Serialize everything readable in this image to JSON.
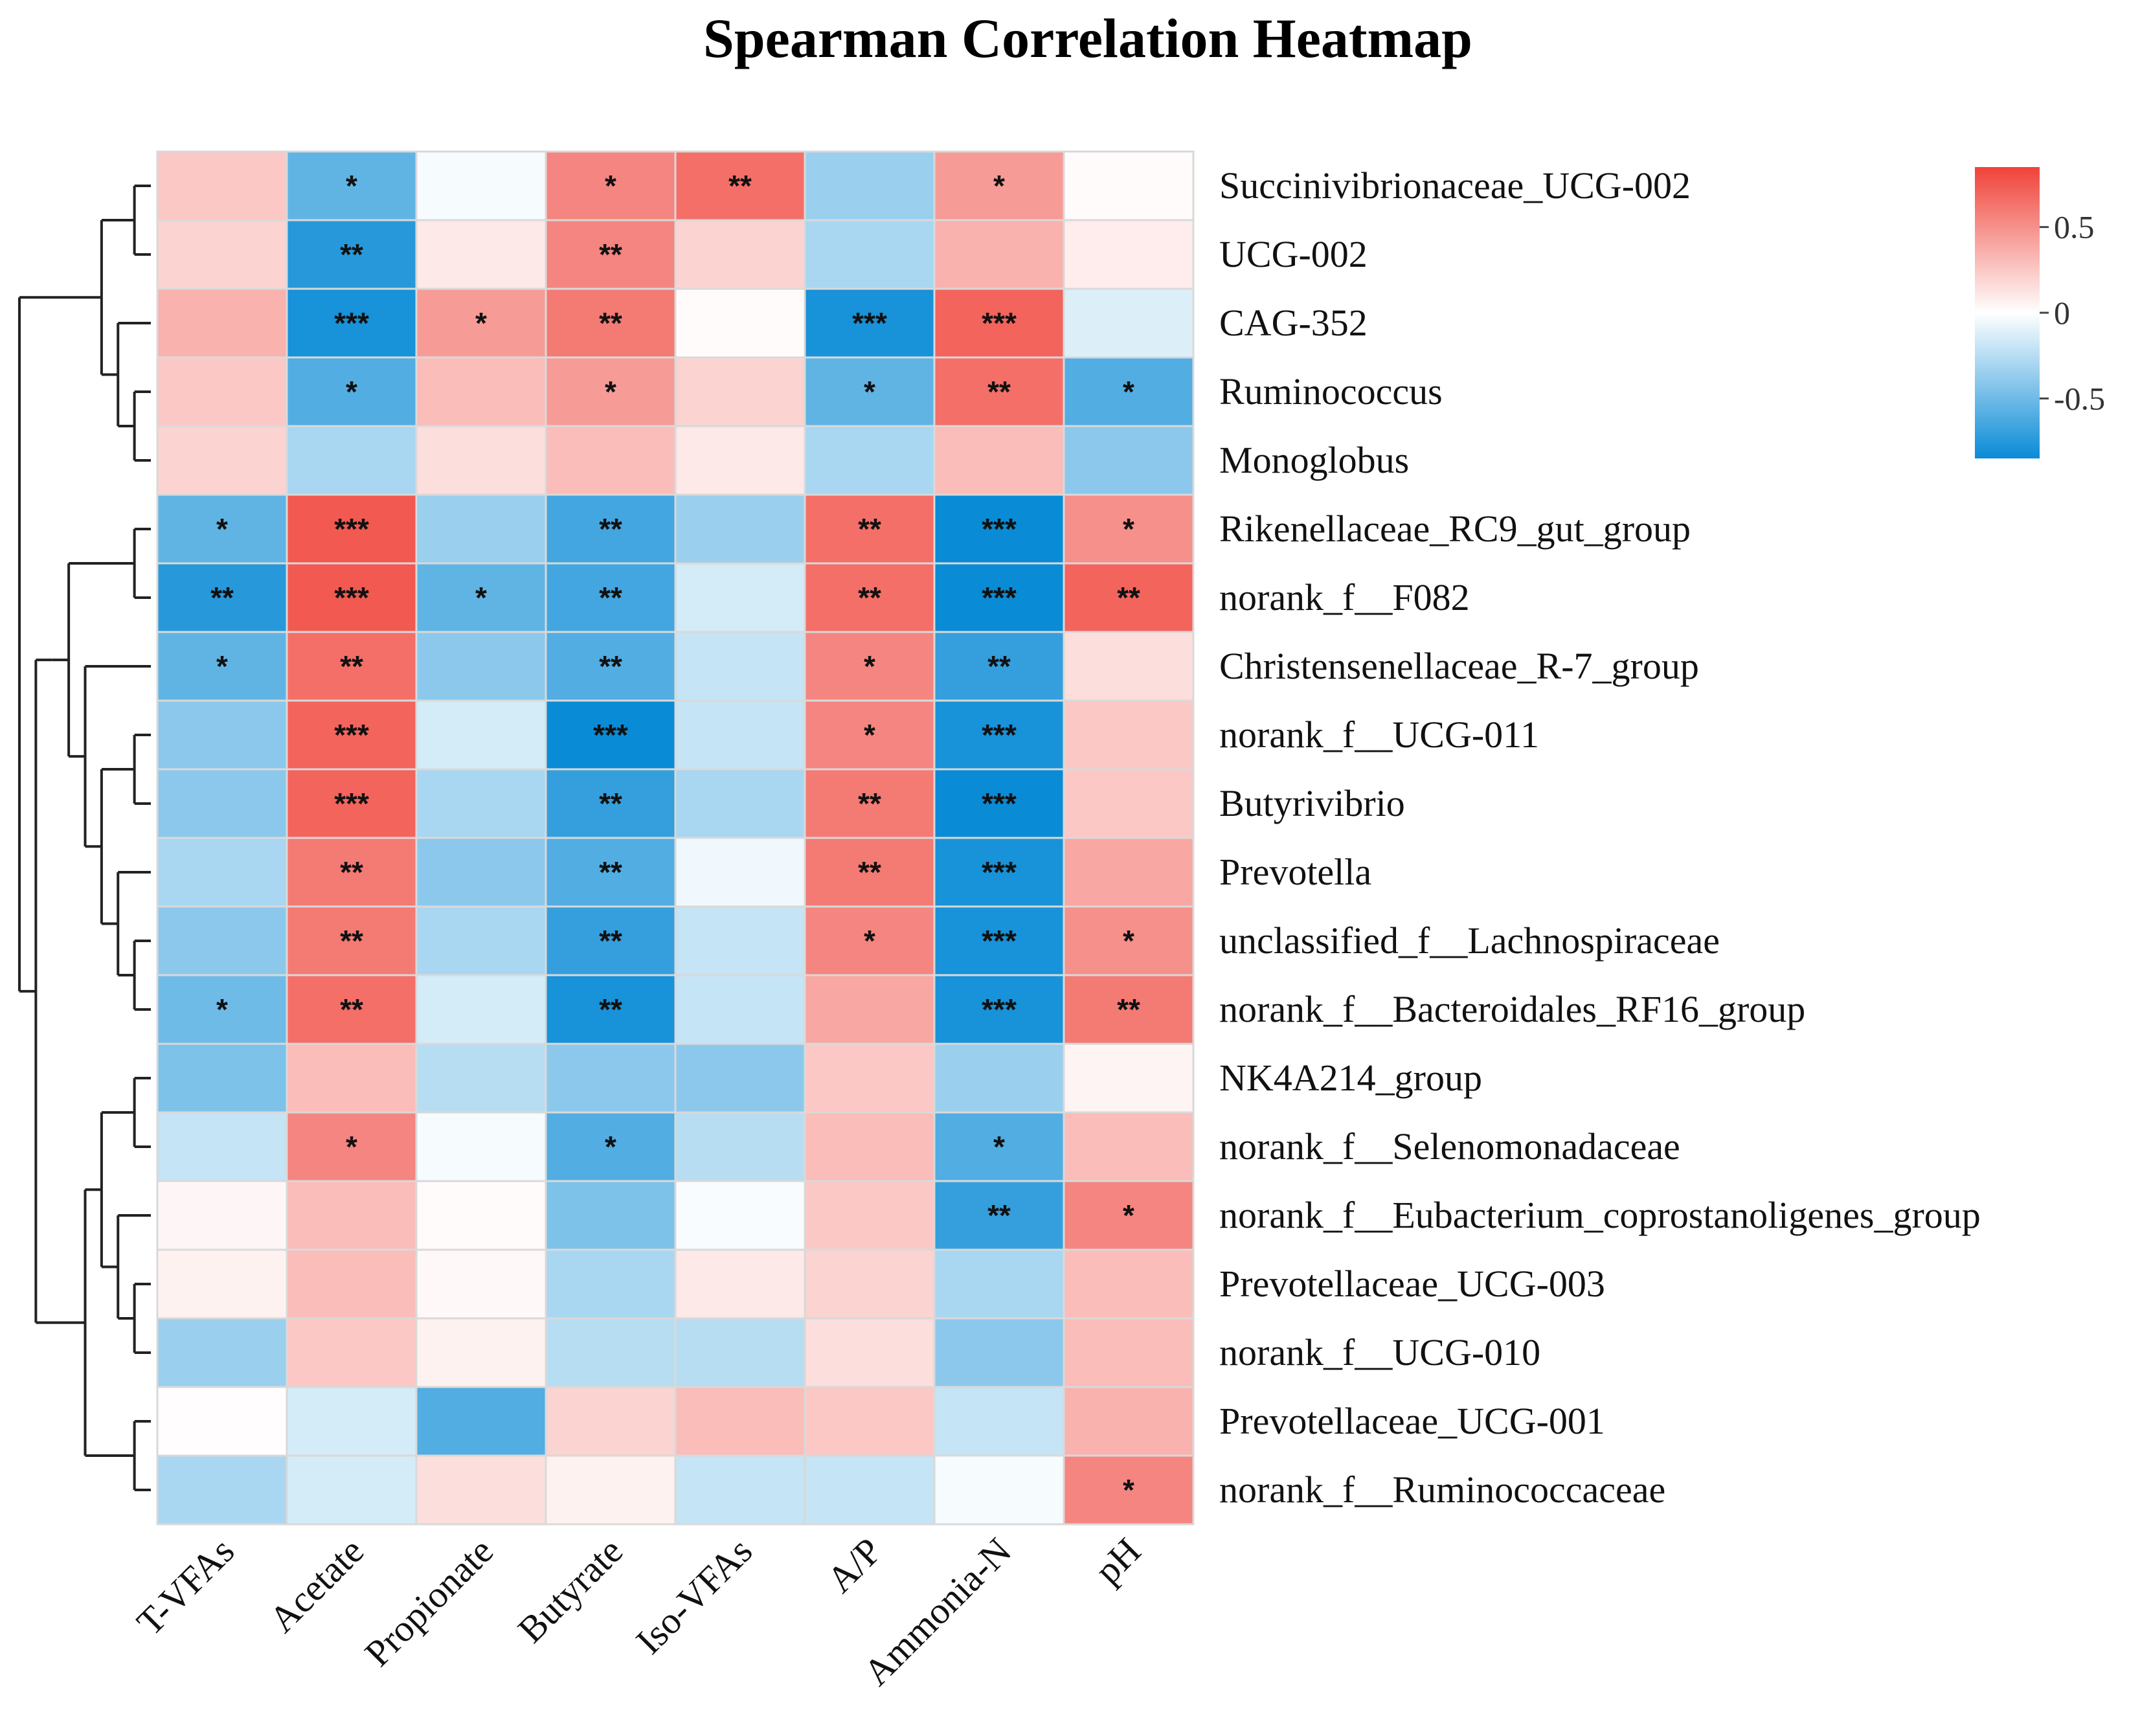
{
  "title": "Spearman Correlation Heatmap",
  "colors": {
    "high": "#f0433a",
    "mid": "#ffffff",
    "low": "#0a8bd6",
    "grid": "#d9d9d9",
    "dendrogram": "#222222"
  },
  "chart_data": {
    "type": "heatmap",
    "title": "Spearman Correlation Heatmap",
    "columns": [
      "T-VFAs",
      "Acetate",
      "Propionate",
      "Butyrate",
      "Iso-VFAs",
      "A/P",
      "Ammonia-N",
      "pH"
    ],
    "rows": [
      "Succinivibrionaceae_UCG-002",
      "UCG-002",
      "CAG-352",
      "Ruminococcus",
      "Monoglobus",
      "Rikenellaceae_RC9_gut_group",
      "norank_f__F082",
      "Christensenellaceae_R-7_group",
      "norank_f__UCG-011",
      "Butyrivibrio",
      "Prevotella",
      "unclassified_f__Lachnospiraceae",
      "norank_f__Bacteroidales_RF16_group",
      "NK4A214_group",
      "norank_f__Selenomonadaceae",
      "norank_f__Eubacterium_coprostanoligenes_group",
      "Prevotellaceae_UCG-003",
      "norank_f__UCG-010",
      "Prevotellaceae_UCG-001",
      "norank_f__Ruminococcaceae"
    ],
    "values": [
      [
        0.25,
        -0.55,
        -0.03,
        0.55,
        0.65,
        -0.35,
        0.45,
        0.02
      ],
      [
        0.2,
        -0.75,
        0.1,
        0.55,
        0.2,
        -0.3,
        0.35,
        0.08
      ],
      [
        0.35,
        -0.8,
        0.45,
        0.6,
        0.02,
        -0.8,
        0.7,
        -0.12
      ],
      [
        0.25,
        -0.6,
        0.3,
        0.45,
        0.2,
        -0.55,
        0.65,
        -0.6
      ],
      [
        0.2,
        -0.3,
        0.15,
        0.3,
        0.1,
        -0.3,
        0.3,
        -0.4
      ],
      [
        -0.55,
        0.75,
        -0.35,
        -0.65,
        -0.35,
        0.65,
        -0.85,
        0.5
      ],
      [
        -0.75,
        0.75,
        -0.55,
        -0.65,
        -0.15,
        0.65,
        -0.9,
        0.7
      ],
      [
        -0.55,
        0.65,
        -0.4,
        -0.6,
        -0.2,
        0.55,
        -0.7,
        0.15
      ],
      [
        -0.4,
        0.7,
        -0.15,
        -0.85,
        -0.2,
        0.55,
        -0.8,
        0.25
      ],
      [
        -0.4,
        0.7,
        -0.3,
        -0.7,
        -0.3,
        0.6,
        -0.85,
        0.25
      ],
      [
        -0.3,
        0.6,
        -0.4,
        -0.6,
        -0.05,
        0.6,
        -0.8,
        0.4
      ],
      [
        -0.4,
        0.6,
        -0.3,
        -0.7,
        -0.2,
        0.55,
        -0.8,
        0.5
      ],
      [
        -0.5,
        0.65,
        -0.15,
        -0.8,
        -0.2,
        0.4,
        -0.8,
        0.6
      ],
      [
        -0.45,
        0.3,
        -0.25,
        -0.4,
        -0.4,
        0.25,
        -0.35,
        0.05
      ],
      [
        -0.2,
        0.55,
        -0.03,
        -0.6,
        -0.25,
        0.3,
        -0.6,
        0.3
      ],
      [
        0.04,
        0.3,
        0.02,
        -0.45,
        -0.02,
        0.25,
        -0.7,
        0.55
      ],
      [
        0.06,
        0.3,
        0.03,
        -0.3,
        0.1,
        0.2,
        -0.3,
        0.3
      ],
      [
        -0.35,
        0.25,
        0.06,
        -0.25,
        -0.25,
        0.15,
        -0.4,
        0.3
      ],
      [
        0.01,
        -0.15,
        -0.6,
        0.2,
        0.3,
        0.25,
        -0.2,
        0.35
      ],
      [
        -0.3,
        -0.15,
        0.15,
        0.06,
        -0.2,
        -0.2,
        -0.03,
        0.55
      ]
    ],
    "significance": [
      [
        "",
        "*",
        "",
        "*",
        "**",
        "",
        "*",
        ""
      ],
      [
        "",
        "**",
        "",
        "**",
        "",
        "",
        "",
        ""
      ],
      [
        "",
        "***",
        "*",
        "**",
        "",
        "***",
        "***",
        ""
      ],
      [
        "",
        "*",
        "",
        "*",
        "",
        "*",
        "**",
        "*"
      ],
      [
        "",
        "",
        "",
        "",
        "",
        "",
        "",
        ""
      ],
      [
        "*",
        "***",
        "",
        "**",
        "",
        "**",
        "***",
        "*"
      ],
      [
        "**",
        "***",
        "*",
        "**",
        "",
        "**",
        "***",
        "**"
      ],
      [
        "*",
        "**",
        "",
        "**",
        "",
        "*",
        "**",
        ""
      ],
      [
        "",
        "***",
        "",
        "***",
        "",
        "*",
        "***",
        ""
      ],
      [
        "",
        "***",
        "",
        "**",
        "",
        "**",
        "***",
        ""
      ],
      [
        "",
        "**",
        "",
        "**",
        "",
        "**",
        "***",
        ""
      ],
      [
        "",
        "**",
        "",
        "**",
        "",
        "*",
        "***",
        "*"
      ],
      [
        "*",
        "**",
        "",
        "**",
        "",
        "",
        "***",
        "**"
      ],
      [
        "",
        "",
        "",
        "",
        "",
        "",
        "",
        ""
      ],
      [
        "",
        "*",
        "",
        "*",
        "",
        "",
        "*",
        ""
      ],
      [
        "",
        "",
        "",
        "",
        "",
        "",
        "**",
        "*"
      ],
      [
        "",
        "",
        "",
        "",
        "",
        "",
        "",
        ""
      ],
      [
        "",
        "",
        "",
        "",
        "",
        "",
        "",
        ""
      ],
      [
        "",
        "",
        "",
        "",
        "",
        "",
        "",
        ""
      ],
      [
        "",
        "",
        "",
        "",
        "",
        "",
        "",
        "*"
      ]
    ],
    "color_scale": {
      "min": -0.85,
      "max": 0.85,
      "ticks": [
        0.5,
        0,
        -0.5
      ],
      "tick_labels": [
        "0.5",
        "0",
        "-0.5"
      ]
    },
    "row_dendrogram": {
      "note": "hierarchical clustering tree over the 20 rows",
      "tree": [
        [
          [
            [
              0,
              1
            ],
            [
              2,
              [
                3,
                4
              ]
            ]
          ]
        ],
        [
          [
            [
              [
                5,
                6
              ],
              [
                7,
                [
                  [
                    8,
                    9
                  ],
                  [
                    10,
                    [
                      11,
                      12
                    ]
                  ]
                ]
              ]
            ]
          ],
          [
            [
              [
                13,
                14
              ],
              [
                15,
                [
                  16,
                  17
                ]
              ]
            ],
            [
              18,
              19
            ]
          ]
        ]
      ]
    },
    "grid": true,
    "legend": "top-right"
  }
}
